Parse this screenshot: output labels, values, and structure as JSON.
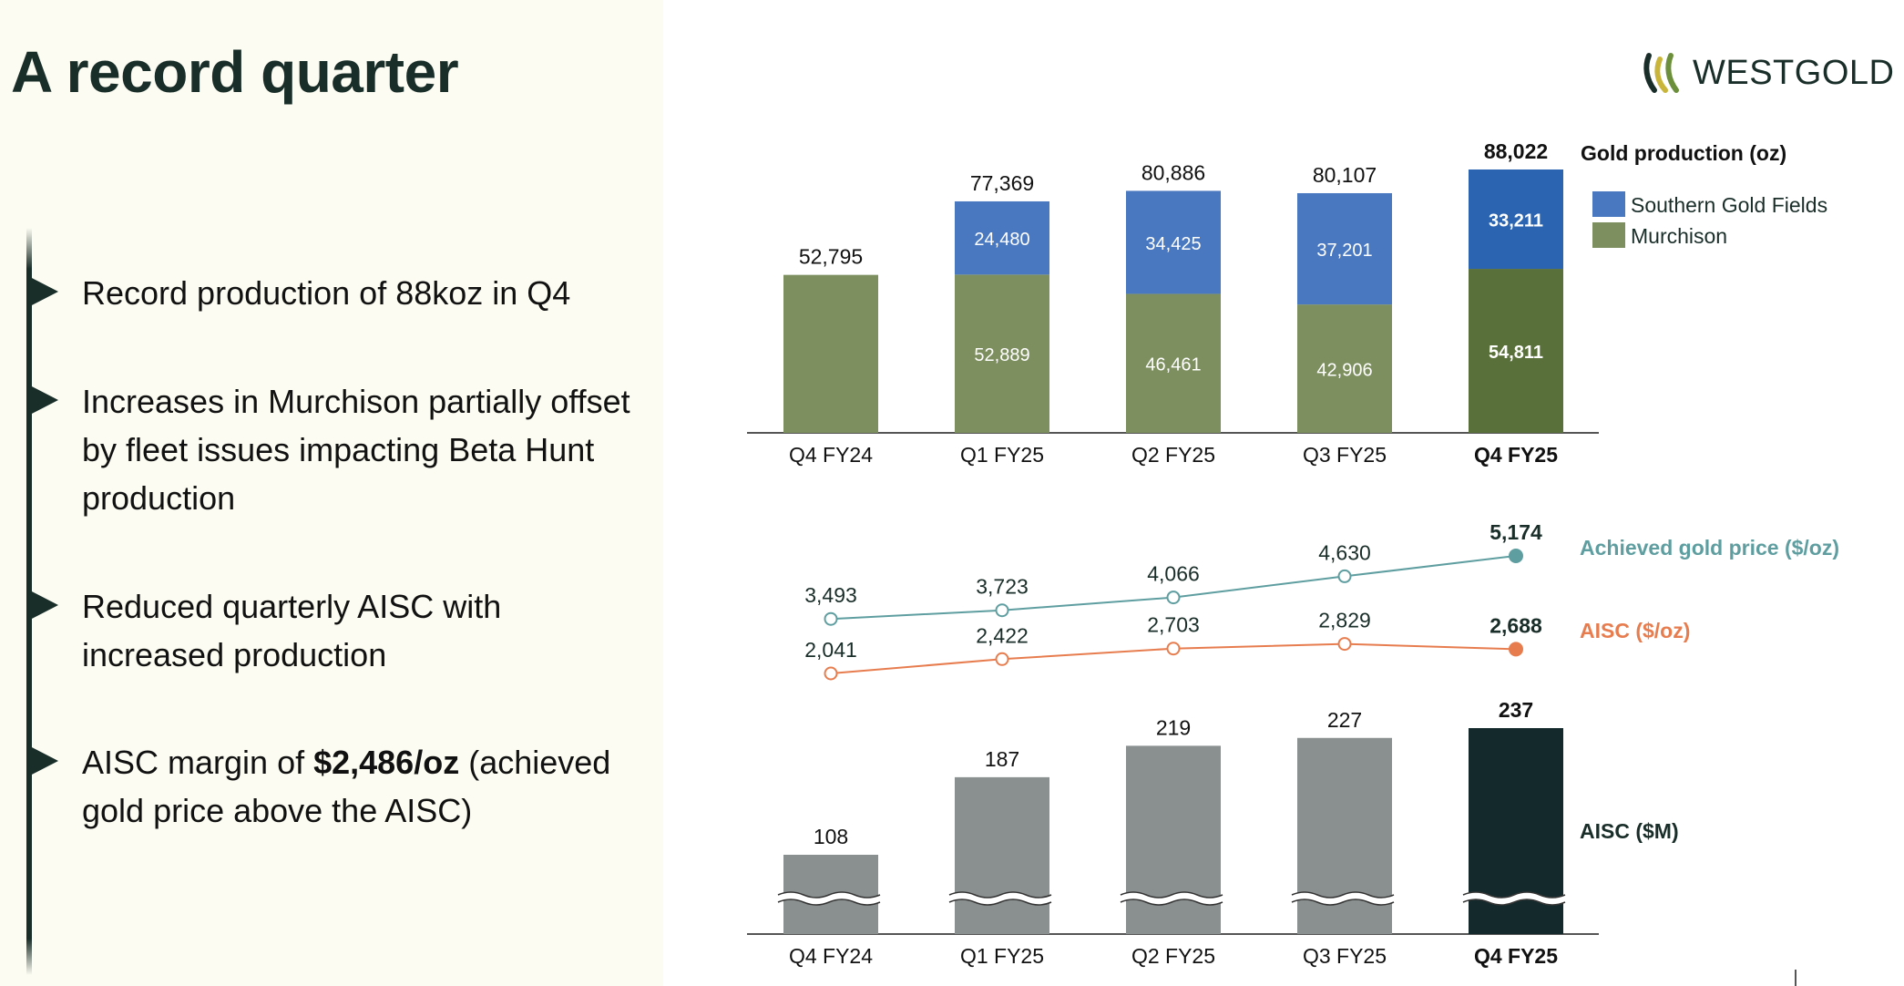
{
  "page": {
    "title": "A record quarter",
    "logo_text": "WESTGOLD"
  },
  "bullets": [
    {
      "runs": [
        {
          "text": "Record production of 88koz in Q4",
          "bold": false
        }
      ]
    },
    {
      "runs": [
        {
          "text": "Increases in Murchison partially offset by fleet issues impacting Beta Hunt production",
          "bold": false
        }
      ]
    },
    {
      "runs": [
        {
          "text": "Reduced quarterly AISC with increased production",
          "bold": false
        }
      ]
    },
    {
      "runs": [
        {
          "text": "AISC margin of ",
          "bold": false
        },
        {
          "text": "$2,486/oz",
          "bold": true
        },
        {
          "text": " (achieved gold price above the AISC)",
          "bold": false
        }
      ]
    }
  ],
  "colors": {
    "murchison": "#7d8f5f",
    "murchison_highlight": "#5a703b",
    "southern": "#4a78c0",
    "southern_highlight": "#2b64b1",
    "gold_price": "#5f9ea0",
    "aisc_line": "#e77d4f",
    "aisc_bar": "#8a8f8f",
    "aisc_bar_highlight": "#13292b",
    "dark": "#1a2e29"
  },
  "chart_data": [
    {
      "type": "bar",
      "stacked": true,
      "title": "Gold production (oz)",
      "categories": [
        "Q4 FY24",
        "Q1 FY25",
        "Q2 FY25",
        "Q3 FY25",
        "Q4 FY25"
      ],
      "highlight_category": "Q4 FY25",
      "series": [
        {
          "name": "Murchison",
          "values": [
            52795,
            52889,
            46461,
            42906,
            54811
          ]
        },
        {
          "name": "Southern Gold Fields",
          "values": [
            0,
            24480,
            34425,
            37201,
            33211
          ]
        }
      ],
      "totals": [
        "52,795",
        "77,369",
        "80,886",
        "80,107",
        "88,022"
      ],
      "segment_labels": {
        "Murchison": [
          "",
          "52,889",
          "46,461",
          "42,906",
          "54,811"
        ],
        "Southern Gold Fields": [
          "",
          "24,480",
          "34,425",
          "37,201",
          "33,211"
        ]
      },
      "legend_position": "right",
      "ylim": [
        0,
        88022
      ]
    },
    {
      "type": "line",
      "categories": [
        "Q4 FY24",
        "Q1 FY25",
        "Q2 FY25",
        "Q3 FY25",
        "Q4 FY25"
      ],
      "series": [
        {
          "name": "Achieved gold price ($/oz)",
          "values": [
            3493,
            3723,
            4066,
            4630,
            5174
          ],
          "labels": [
            "3,493",
            "3,723",
            "4,066",
            "4,630",
            "5,174"
          ]
        },
        {
          "name": "AISC ($/oz)",
          "values": [
            2041,
            2422,
            2703,
            2829,
            2688
          ],
          "labels": [
            "2,041",
            "2,422",
            "2,703",
            "2,829",
            "2,688"
          ]
        }
      ]
    },
    {
      "type": "bar",
      "title": "AISC ($M)",
      "categories": [
        "Q4 FY24",
        "Q1 FY25",
        "Q2 FY25",
        "Q3 FY25",
        "Q4 FY25"
      ],
      "highlight_category": "Q4 FY25",
      "values": [
        108,
        187,
        219,
        227,
        237
      ],
      "labels": [
        "108",
        "187",
        "219",
        "227",
        "237"
      ],
      "axis_break": true
    }
  ]
}
